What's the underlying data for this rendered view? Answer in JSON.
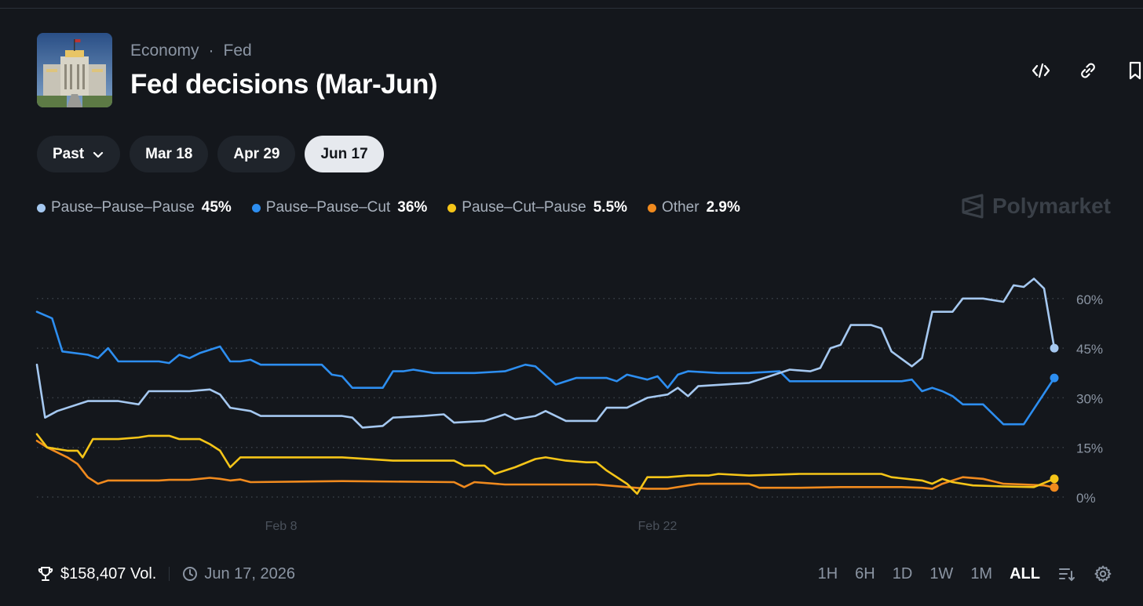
{
  "header": {
    "category": "Economy",
    "subcategory": "Fed",
    "title": "Fed decisions (Mar-Jun)"
  },
  "tabs": [
    {
      "label": "Past",
      "active": false
    },
    {
      "label": "Mar 18",
      "active": false
    },
    {
      "label": "Apr 29",
      "active": false
    },
    {
      "label": "Jun 17",
      "active": true
    }
  ],
  "legend": [
    {
      "name": "Pause–Pause–Pause",
      "value": "45%",
      "color": "#a5c8f0"
    },
    {
      "name": "Pause–Pause–Cut",
      "value": "36%",
      "color": "#2d8ef0"
    },
    {
      "name": "Pause–Cut–Pause",
      "value": "5.5%",
      "color": "#f5c518"
    },
    {
      "name": "Other",
      "value": "2.9%",
      "color": "#f08a1e"
    }
  ],
  "brand": "Polymarket",
  "footer": {
    "volume": "$158,407 Vol.",
    "date": "Jun 17, 2026",
    "ranges": [
      "1H",
      "6H",
      "1D",
      "1W",
      "1M",
      "ALL"
    ],
    "active_range": "ALL"
  },
  "icons": {
    "embed": "code-icon",
    "link": "link-icon",
    "bookmark": "bookmark-icon",
    "volume": "trophy-icon",
    "date": "clock-icon",
    "sort": "sort-icon",
    "settings": "gear-icon",
    "dropdown": "chevron-down-icon"
  },
  "chart_data": {
    "type": "line",
    "x_tick_labels": [
      {
        "label": "Feb 8",
        "t": 0.24
      },
      {
        "label": "Feb 22",
        "t": 0.61
      }
    ],
    "y_ticks": [
      0,
      15,
      30,
      45,
      60
    ],
    "y_tick_labels": [
      "0%",
      "15%",
      "30%",
      "45%",
      "60%"
    ],
    "ylim": [
      0,
      65
    ],
    "grid": true,
    "series": [
      {
        "name": "Pause–Pause–Pause",
        "color": "#a5c8f0",
        "points": [
          [
            0,
            40
          ],
          [
            0.008,
            24
          ],
          [
            0.02,
            26
          ],
          [
            0.05,
            29
          ],
          [
            0.08,
            29
          ],
          [
            0.1,
            28
          ],
          [
            0.11,
            32
          ],
          [
            0.15,
            32
          ],
          [
            0.17,
            32.5
          ],
          [
            0.18,
            31
          ],
          [
            0.19,
            27
          ],
          [
            0.21,
            26
          ],
          [
            0.22,
            24.5
          ],
          [
            0.3,
            24.5
          ],
          [
            0.31,
            24
          ],
          [
            0.32,
            21
          ],
          [
            0.34,
            21.5
          ],
          [
            0.35,
            24
          ],
          [
            0.38,
            24.5
          ],
          [
            0.4,
            25
          ],
          [
            0.41,
            22.5
          ],
          [
            0.44,
            23
          ],
          [
            0.46,
            25
          ],
          [
            0.47,
            23.5
          ],
          [
            0.49,
            24.5
          ],
          [
            0.5,
            26
          ],
          [
            0.52,
            23
          ],
          [
            0.55,
            23
          ],
          [
            0.56,
            27
          ],
          [
            0.58,
            27
          ],
          [
            0.6,
            30
          ],
          [
            0.62,
            31
          ],
          [
            0.63,
            33
          ],
          [
            0.64,
            30.5
          ],
          [
            0.65,
            33.5
          ],
          [
            0.7,
            34.5
          ],
          [
            0.72,
            36.5
          ],
          [
            0.74,
            38.5
          ],
          [
            0.76,
            38
          ],
          [
            0.77,
            39
          ],
          [
            0.78,
            45
          ],
          [
            0.79,
            46
          ],
          [
            0.8,
            52
          ],
          [
            0.82,
            52
          ],
          [
            0.83,
            51
          ],
          [
            0.84,
            44
          ],
          [
            0.86,
            39.5
          ],
          [
            0.87,
            42
          ],
          [
            0.88,
            56
          ],
          [
            0.9,
            56
          ],
          [
            0.91,
            60
          ],
          [
            0.93,
            60
          ],
          [
            0.95,
            59
          ],
          [
            0.96,
            64
          ],
          [
            0.97,
            63.5
          ],
          [
            0.98,
            66
          ],
          [
            0.99,
            63
          ],
          [
            1,
            45
          ]
        ]
      },
      {
        "name": "Pause–Pause–Cut",
        "color": "#2d8ef0",
        "points": [
          [
            0,
            56
          ],
          [
            0.015,
            54
          ],
          [
            0.025,
            44
          ],
          [
            0.05,
            43
          ],
          [
            0.06,
            42
          ],
          [
            0.07,
            45
          ],
          [
            0.08,
            41
          ],
          [
            0.12,
            41
          ],
          [
            0.13,
            40.5
          ],
          [
            0.14,
            43
          ],
          [
            0.15,
            42
          ],
          [
            0.16,
            43.5
          ],
          [
            0.18,
            45.5
          ],
          [
            0.19,
            41
          ],
          [
            0.2,
            41
          ],
          [
            0.21,
            41.5
          ],
          [
            0.22,
            40
          ],
          [
            0.28,
            40
          ],
          [
            0.29,
            37
          ],
          [
            0.3,
            36.5
          ],
          [
            0.31,
            33
          ],
          [
            0.34,
            33
          ],
          [
            0.35,
            38
          ],
          [
            0.36,
            38
          ],
          [
            0.37,
            38.5
          ],
          [
            0.39,
            37.5
          ],
          [
            0.43,
            37.5
          ],
          [
            0.46,
            38
          ],
          [
            0.48,
            40
          ],
          [
            0.49,
            39.5
          ],
          [
            0.51,
            34
          ],
          [
            0.53,
            36
          ],
          [
            0.56,
            36
          ],
          [
            0.57,
            35
          ],
          [
            0.58,
            37
          ],
          [
            0.6,
            35.5
          ],
          [
            0.61,
            36.5
          ],
          [
            0.62,
            33
          ],
          [
            0.63,
            37
          ],
          [
            0.64,
            38
          ],
          [
            0.67,
            37.5
          ],
          [
            0.7,
            37.5
          ],
          [
            0.73,
            38
          ],
          [
            0.74,
            35
          ],
          [
            0.85,
            35
          ],
          [
            0.86,
            35.5
          ],
          [
            0.87,
            32
          ],
          [
            0.88,
            33
          ],
          [
            0.89,
            32
          ],
          [
            0.9,
            30.5
          ],
          [
            0.91,
            28
          ],
          [
            0.93,
            28
          ],
          [
            0.95,
            22
          ],
          [
            0.97,
            22
          ],
          [
            1,
            36
          ]
        ]
      },
      {
        "name": "Pause–Cut–Pause",
        "color": "#f5c518",
        "points": [
          [
            0,
            19
          ],
          [
            0.01,
            15
          ],
          [
            0.03,
            14
          ],
          [
            0.04,
            14
          ],
          [
            0.045,
            12
          ],
          [
            0.055,
            17.5
          ],
          [
            0.08,
            17.5
          ],
          [
            0.1,
            18
          ],
          [
            0.11,
            18.5
          ],
          [
            0.13,
            18.5
          ],
          [
            0.14,
            17.5
          ],
          [
            0.16,
            17.5
          ],
          [
            0.17,
            16
          ],
          [
            0.18,
            14
          ],
          [
            0.19,
            9
          ],
          [
            0.2,
            12
          ],
          [
            0.3,
            12
          ],
          [
            0.35,
            11
          ],
          [
            0.41,
            11
          ],
          [
            0.42,
            9.5
          ],
          [
            0.44,
            9.5
          ],
          [
            0.45,
            7
          ],
          [
            0.47,
            9
          ],
          [
            0.49,
            11.5
          ],
          [
            0.5,
            12
          ],
          [
            0.52,
            11
          ],
          [
            0.54,
            10.5
          ],
          [
            0.55,
            10.5
          ],
          [
            0.56,
            8
          ],
          [
            0.58,
            4
          ],
          [
            0.59,
            1
          ],
          [
            0.6,
            6
          ],
          [
            0.62,
            6
          ],
          [
            0.64,
            6.5
          ],
          [
            0.66,
            6.5
          ],
          [
            0.67,
            7
          ],
          [
            0.7,
            6.5
          ],
          [
            0.75,
            7
          ],
          [
            0.8,
            7
          ],
          [
            0.83,
            7
          ],
          [
            0.84,
            6
          ],
          [
            0.87,
            5
          ],
          [
            0.88,
            4
          ],
          [
            0.89,
            5.5
          ],
          [
            0.9,
            4.5
          ],
          [
            0.92,
            3.5
          ],
          [
            0.95,
            3.2
          ],
          [
            0.98,
            3
          ],
          [
            1,
            5.5
          ]
        ]
      },
      {
        "name": "Other",
        "color": "#f08a1e",
        "points": [
          [
            0,
            17
          ],
          [
            0.01,
            15
          ],
          [
            0.03,
            12
          ],
          [
            0.04,
            10
          ],
          [
            0.05,
            6
          ],
          [
            0.06,
            4
          ],
          [
            0.07,
            5
          ],
          [
            0.12,
            5
          ],
          [
            0.13,
            5.2
          ],
          [
            0.15,
            5.2
          ],
          [
            0.16,
            5.5
          ],
          [
            0.17,
            5.8
          ],
          [
            0.18,
            5.5
          ],
          [
            0.19,
            5
          ],
          [
            0.2,
            5.3
          ],
          [
            0.21,
            4.5
          ],
          [
            0.3,
            4.8
          ],
          [
            0.41,
            4.5
          ],
          [
            0.42,
            3
          ],
          [
            0.43,
            4.5
          ],
          [
            0.46,
            3.8
          ],
          [
            0.52,
            3.8
          ],
          [
            0.55,
            3.8
          ],
          [
            0.58,
            3
          ],
          [
            0.6,
            2.5
          ],
          [
            0.62,
            2.5
          ],
          [
            0.64,
            3.5
          ],
          [
            0.65,
            4
          ],
          [
            0.7,
            4
          ],
          [
            0.71,
            2.8
          ],
          [
            0.75,
            2.8
          ],
          [
            0.79,
            3
          ],
          [
            0.85,
            3
          ],
          [
            0.87,
            2.8
          ],
          [
            0.88,
            2.5
          ],
          [
            0.89,
            4
          ],
          [
            0.9,
            5
          ],
          [
            0.91,
            6
          ],
          [
            0.93,
            5.5
          ],
          [
            0.95,
            4
          ],
          [
            0.97,
            3.8
          ],
          [
            0.99,
            3.5
          ],
          [
            1,
            2.9
          ]
        ]
      }
    ]
  }
}
